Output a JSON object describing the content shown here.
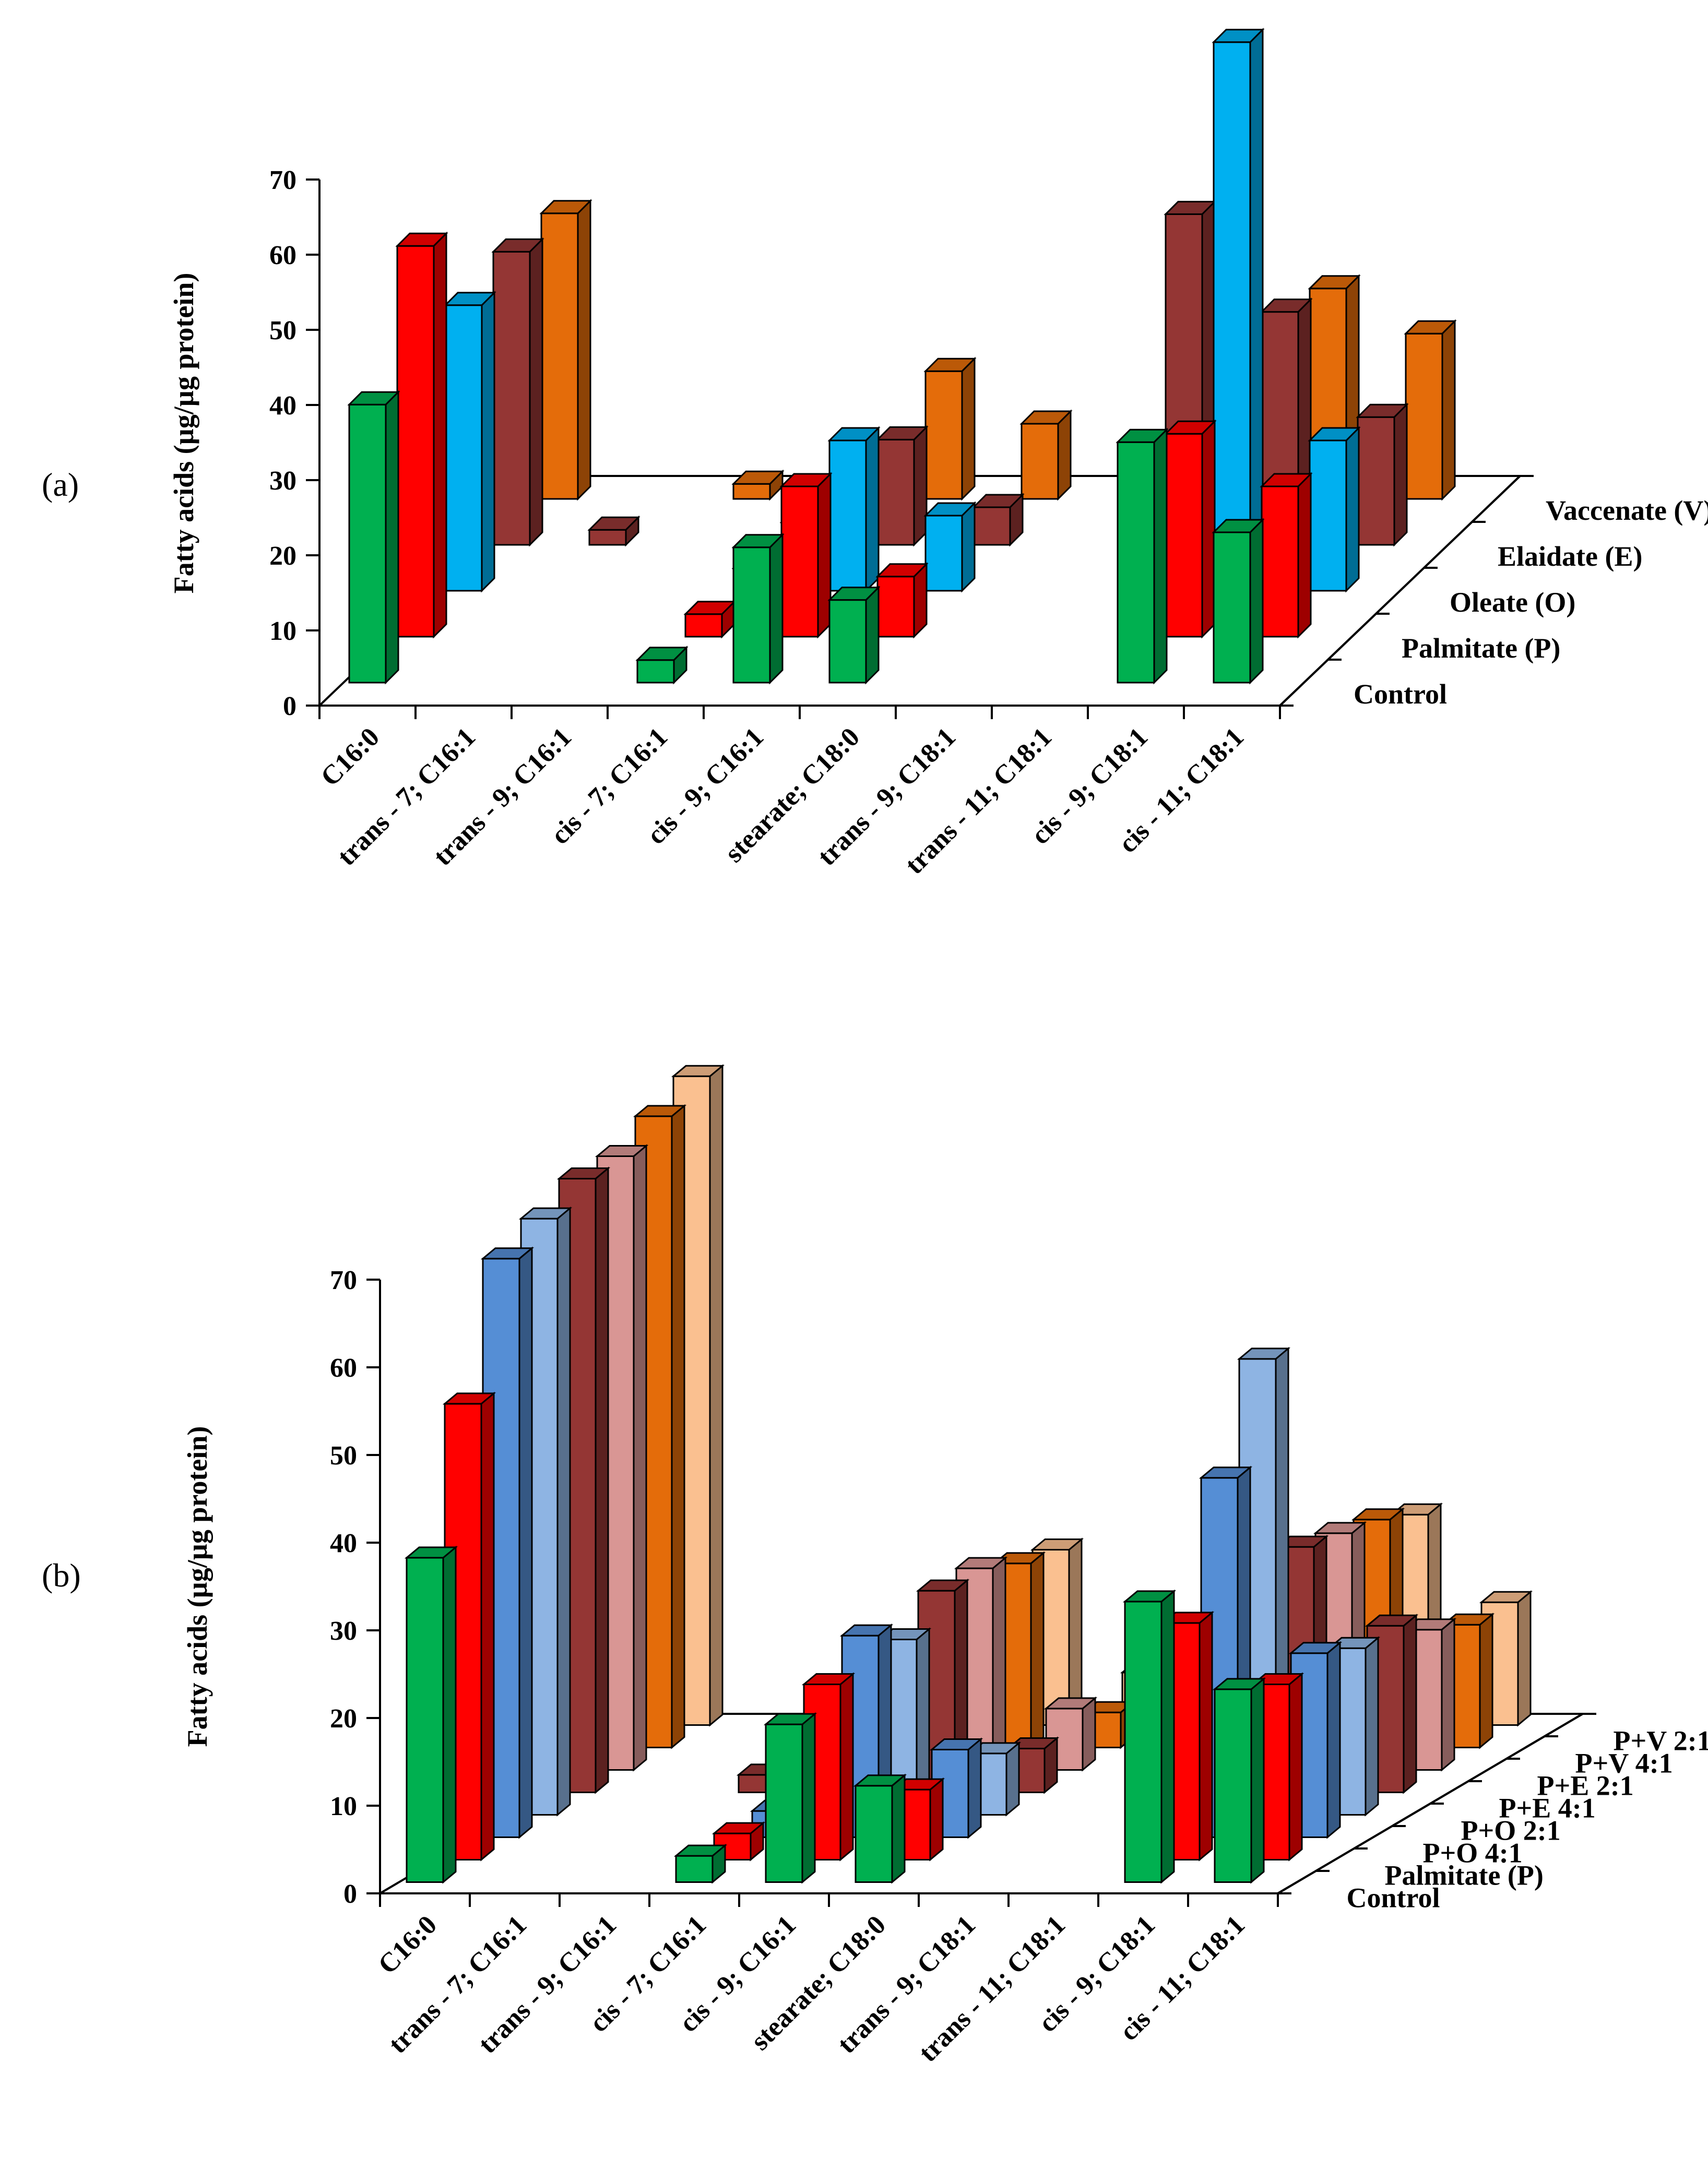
{
  "chart_data": [
    {
      "type": "bar3d",
      "panel_label": "(a)",
      "ylabel": "Fatty acids (µg/µg protein)",
      "ylim": [
        0,
        70
      ],
      "yticks": [
        0,
        10,
        20,
        30,
        40,
        50,
        60,
        70
      ],
      "categories": [
        "C16:0",
        "trans - 7; C16:1",
        "trans - 9; C16:1",
        "cis - 7; C16:1",
        "cis - 9; C16:1",
        "stearate; C18:0",
        "trans - 9; C18:1",
        "trans - 11; C18:1",
        "cis - 9; C18:1",
        "cis - 11; C18:1"
      ],
      "series": [
        {
          "name": "Control",
          "color": "#00b050",
          "values": [
            37,
            0,
            0,
            3,
            18,
            11,
            0,
            0,
            32,
            20
          ]
        },
        {
          "name": "Palmitate (P)",
          "color": "#ff0000",
          "values": [
            52,
            0,
            0,
            3,
            20,
            8,
            0,
            0,
            27,
            20
          ]
        },
        {
          "name": "Oleate (O)",
          "color": "#00b0f0",
          "values": [
            38,
            0,
            0,
            3,
            20,
            10,
            0,
            0,
            73,
            20
          ]
        },
        {
          "name": "Elaidate (E)",
          "color": "#943634",
          "values": [
            39,
            2,
            0,
            3,
            14,
            5,
            0,
            44,
            31,
            17
          ]
        },
        {
          "name": "Vaccenate (V)",
          "color": "#e46c0a",
          "values": [
            38,
            0,
            2,
            0,
            17,
            10,
            0,
            0,
            28,
            22
          ]
        }
      ]
    },
    {
      "type": "bar3d",
      "panel_label": "(b)",
      "ylabel": "Fatty acids (µg/µg protein)",
      "ylim": [
        0,
        70
      ],
      "yticks": [
        0,
        10,
        20,
        30,
        40,
        50,
        60,
        70
      ],
      "categories": [
        "C16:0",
        "trans - 7; C16:1",
        "trans - 9; C16:1",
        "cis - 7; C16:1",
        "cis - 9; C16:1",
        "stearate; C18:0",
        "trans - 9; C18:1",
        "trans - 11; C18:1",
        "cis - 9; C18:1",
        "cis - 11; C18:1"
      ],
      "series": [
        {
          "name": "Control",
          "color": "#00b050",
          "values": [
            37,
            0,
            0,
            3,
            18,
            11,
            0,
            0,
            32,
            22
          ]
        },
        {
          "name": "Palmitate (P)",
          "color": "#ff0000",
          "values": [
            52,
            0,
            0,
            3,
            20,
            8,
            0,
            0,
            27,
            20
          ]
        },
        {
          "name": "P+O 4:1",
          "color": "#558ed5",
          "values": [
            66,
            0,
            0,
            3,
            23,
            10,
            0,
            0,
            41,
            21
          ]
        },
        {
          "name": "P+O 2:1",
          "color": "#8eb4e3",
          "values": [
            68,
            0,
            0,
            0,
            20,
            7,
            0,
            0,
            52,
            19
          ]
        },
        {
          "name": "P+E 4:1",
          "color": "#943634",
          "values": [
            70,
            0,
            2,
            0,
            23,
            5,
            0,
            14,
            28,
            19
          ]
        },
        {
          "name": "P+E 2:1",
          "color": "#d99694",
          "values": [
            70,
            0,
            2,
            0,
            23,
            7,
            0,
            21,
            27,
            16
          ]
        },
        {
          "name": "P+V 4:1",
          "color": "#e46c0a",
          "values": [
            72,
            0,
            0,
            2,
            21,
            4,
            0,
            0,
            26,
            14
          ]
        },
        {
          "name": "P+V 2:1",
          "color": "#fac090",
          "values": [
            74,
            0,
            0,
            2,
            20,
            6,
            0,
            0,
            24,
            14
          ]
        }
      ]
    }
  ]
}
